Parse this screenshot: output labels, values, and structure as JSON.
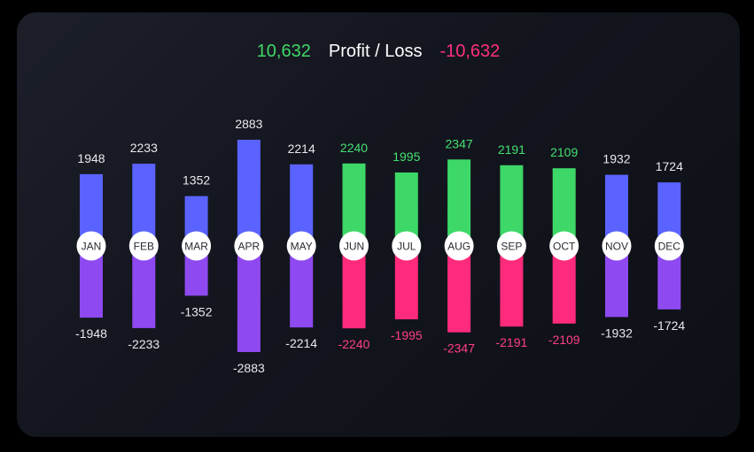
{
  "header": {
    "profit_total": "10,632",
    "title": "Profit / Loss",
    "loss_total": "-10,632"
  },
  "colors": {
    "default_positive": "#5a63ff",
    "default_negative": "#8e4af0",
    "highlight_positive": "#3dd867",
    "highlight_negative": "#fe2a7c",
    "highlight_positive_label": "#44e070",
    "highlight_negative_label": "#ff3f86",
    "default_label": "#e9e9ee",
    "month_circle": "#ffffff",
    "month_text": "#2a2a33"
  },
  "chart_data": {
    "type": "bar",
    "categories": [
      "JAN",
      "FEB",
      "MAR",
      "APR",
      "MAY",
      "JUN",
      "JUL",
      "AUG",
      "SEP",
      "OCT",
      "NOV",
      "DEC"
    ],
    "series": [
      {
        "values": [
          1948,
          2233,
          1352,
          2883,
          2214,
          2240,
          1995,
          2347,
          2191,
          2109,
          1932,
          1724
        ]
      },
      {
        "values": [
          -1948,
          -2233,
          -1352,
          -2883,
          -2214,
          -2240,
          -1995,
          -2347,
          -2191,
          -2109,
          -1932,
          -1724
        ]
      }
    ],
    "highlighted_categories": [
      "JUN",
      "JUL",
      "AUG",
      "SEP",
      "OCT"
    ],
    "ylim": [
      -2883,
      2883
    ]
  }
}
